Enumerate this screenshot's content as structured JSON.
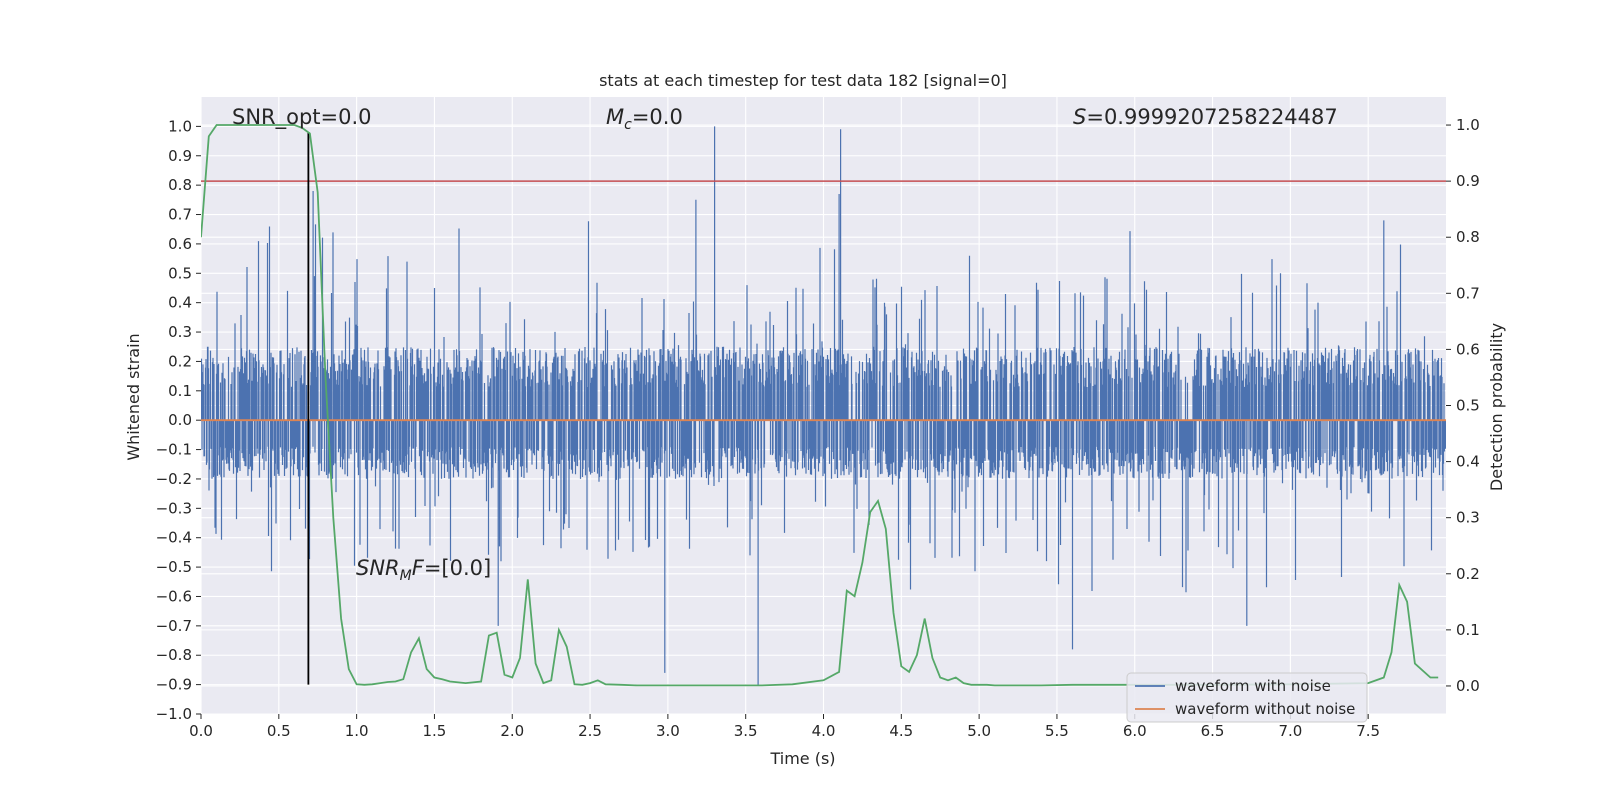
{
  "chart_data": {
    "type": "line",
    "title": "stats at each timestep for test data 182 [signal=0]",
    "xlabel": "Time (s)",
    "ylabel": "Whitened strain",
    "y2label": "Detection probability",
    "xlim": [
      0.0,
      8.0
    ],
    "ylim": [
      -1.0,
      1.1
    ],
    "y2lim": [
      -0.05,
      1.05
    ],
    "x_ticks": [
      0.0,
      0.5,
      1.0,
      1.5,
      2.0,
      2.5,
      3.0,
      3.5,
      4.0,
      4.5,
      5.0,
      5.5,
      6.0,
      6.5,
      7.0,
      7.5
    ],
    "x_tick_labels": [
      "0.0",
      "0.5",
      "1.0",
      "1.5",
      "2.0",
      "2.5",
      "3.0",
      "3.5",
      "4.0",
      "4.5",
      "5.0",
      "5.5",
      "6.0",
      "6.5",
      "7.0",
      "7.5"
    ],
    "y_ticks": [
      -1.0,
      -0.9,
      -0.8,
      -0.7,
      -0.6,
      -0.5,
      -0.4,
      -0.3,
      -0.2,
      -0.1,
      0.0,
      0.1,
      0.2,
      0.3,
      0.4,
      0.5,
      0.6,
      0.7,
      0.8,
      0.9,
      1.0
    ],
    "y_tick_labels": [
      "−1.0",
      "−0.9",
      "−0.8",
      "−0.7",
      "−0.6",
      "−0.5",
      "−0.4",
      "−0.3",
      "−0.2",
      "−0.1",
      "0.0",
      "0.1",
      "0.2",
      "0.3",
      "0.4",
      "0.5",
      "0.6",
      "0.7",
      "0.8",
      "0.9",
      "1.0"
    ],
    "y2_ticks": [
      0.0,
      0.1,
      0.2,
      0.3,
      0.4,
      0.5,
      0.6,
      0.7,
      0.8,
      0.9,
      1.0
    ],
    "y2_tick_labels": [
      "0.0",
      "0.1",
      "0.2",
      "0.3",
      "0.4",
      "0.5",
      "0.6",
      "0.7",
      "0.8",
      "0.9",
      "1.0"
    ],
    "grid": true,
    "legend": {
      "placement": "lower-right",
      "entries": [
        {
          "label": "waveform with noise",
          "color": "#4c72b0"
        },
        {
          "label": "waveform without noise",
          "color": "#dd8452"
        }
      ]
    },
    "annotations": {
      "snr_opt": "SNR_opt=0.0",
      "mc_symbol": "M",
      "mc_subscript": "c",
      "mc_value": "=0.0",
      "s_symbol": "S",
      "s_value": "=0.9999207258224487",
      "snr_mf_symbol": "SNR",
      "snr_mf_subscript": "M",
      "snr_mf_tail": "F",
      "snr_mf_value": "=[0.0]"
    },
    "colors": {
      "noise": "#4c72b0",
      "clean": "#dd8452",
      "probability": "#55a868",
      "threshold": "#c44e52",
      "marker": "#000000",
      "background": "#eaeaf2",
      "grid": "#ffffff"
    },
    "noise_envelope": {
      "typical_upper": 0.38,
      "typical_lower": -0.36,
      "dense_band": [
        -0.2,
        0.25
      ],
      "sample_count": 8192
    },
    "noise_spikes": [
      {
        "x": 3.3,
        "y": 1.0
      },
      {
        "x": 4.11,
        "y": 0.99
      },
      {
        "x": 3.58,
        "y": -0.9
      },
      {
        "x": 2.98,
        "y": -0.86
      },
      {
        "x": 5.6,
        "y": -0.78
      },
      {
        "x": 0.72,
        "y": 0.78
      },
      {
        "x": 3.18,
        "y": 0.75
      },
      {
        "x": 4.1,
        "y": 0.77
      },
      {
        "x": 7.6,
        "y": 0.68
      },
      {
        "x": 1.91,
        "y": -0.7
      },
      {
        "x": 6.72,
        "y": -0.7
      }
    ],
    "clean_waveform": {
      "x": [
        0.0,
        8.0
      ],
      "y": [
        0.0,
        0.0
      ]
    },
    "threshold_line": {
      "y2": 0.9
    },
    "marker_line": {
      "x": 0.69,
      "y_from": -0.9,
      "y_to": 0.98
    },
    "probability_series": {
      "x": [
        0.0,
        0.05,
        0.1,
        0.2,
        0.3,
        0.4,
        0.5,
        0.6,
        0.65,
        0.7,
        0.75,
        0.8,
        0.85,
        0.9,
        0.95,
        1.0,
        1.05,
        1.1,
        1.2,
        1.25,
        1.3,
        1.35,
        1.4,
        1.45,
        1.5,
        1.55,
        1.6,
        1.7,
        1.8,
        1.85,
        1.9,
        1.95,
        2.0,
        2.05,
        2.1,
        2.15,
        2.2,
        2.25,
        2.3,
        2.35,
        2.4,
        2.45,
        2.5,
        2.55,
        2.6,
        2.7,
        2.8,
        2.9,
        3.0,
        3.2,
        3.4,
        3.6,
        3.8,
        4.0,
        4.1,
        4.15,
        4.2,
        4.25,
        4.3,
        4.35,
        4.4,
        4.45,
        4.5,
        4.55,
        4.6,
        4.65,
        4.7,
        4.75,
        4.8,
        4.85,
        4.9,
        4.95,
        5.0,
        5.05,
        5.1,
        5.2,
        5.3,
        5.4,
        5.6,
        6.0,
        6.5,
        7.0,
        7.5,
        7.6,
        7.65,
        7.7,
        7.75,
        7.8,
        7.9,
        7.95
      ],
      "y2": [
        0.8,
        0.98,
        1.0,
        1.0,
        1.0,
        1.0,
        1.0,
        1.0,
        0.995,
        0.985,
        0.88,
        0.55,
        0.3,
        0.12,
        0.03,
        0.003,
        0.002,
        0.003,
        0.007,
        0.008,
        0.012,
        0.06,
        0.085,
        0.03,
        0.015,
        0.012,
        0.008,
        0.005,
        0.008,
        0.09,
        0.095,
        0.02,
        0.015,
        0.05,
        0.19,
        0.04,
        0.005,
        0.01,
        0.1,
        0.07,
        0.003,
        0.002,
        0.005,
        0.01,
        0.003,
        0.002,
        0.001,
        0.001,
        0.001,
        0.001,
        0.001,
        0.001,
        0.003,
        0.01,
        0.025,
        0.17,
        0.16,
        0.22,
        0.31,
        0.33,
        0.28,
        0.13,
        0.035,
        0.025,
        0.055,
        0.12,
        0.05,
        0.015,
        0.01,
        0.015,
        0.005,
        0.002,
        0.002,
        0.002,
        0.001,
        0.001,
        0.001,
        0.001,
        0.002,
        0.002,
        0.002,
        0.003,
        0.005,
        0.015,
        0.06,
        0.18,
        0.15,
        0.04,
        0.015,
        0.015
      ]
    }
  }
}
